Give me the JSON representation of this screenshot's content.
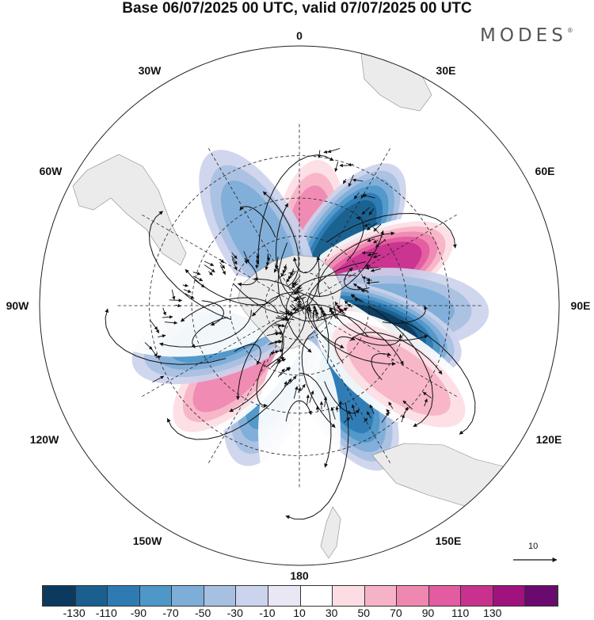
{
  "title": "Base 06/07/2025 00 UTC, valid 07/07/2025 00 UTC",
  "brand": "MODES",
  "brand_mark": "®",
  "longitude_labels": {
    "top": "0",
    "bottom": "180",
    "left": "90W",
    "right": "90E",
    "upper_left_1": "30W",
    "upper_left_2": "60W",
    "lower_left_1": "120W",
    "lower_left_2": "150W",
    "upper_right_1": "30E",
    "upper_right_2": "60E",
    "lower_right_1": "120E",
    "lower_right_2": "150E"
  },
  "reference_vector": {
    "label": "10"
  },
  "colorbar": {
    "colors": [
      "#0b3a5e",
      "#1a5f8e",
      "#2e7bb4",
      "#4f97c9",
      "#7eaed8",
      "#a7c0e2",
      "#ccd3ec",
      "#e9e7f4",
      "#ffffff",
      "#fcdde3",
      "#f6b3c7",
      "#ef88b1",
      "#e35ba0",
      "#c9318e",
      "#a0127e",
      "#6a0a6e"
    ],
    "tick_labels": [
      "-130",
      "-110",
      "-90",
      "-70",
      "-50",
      "-30",
      "-10",
      "10",
      "30",
      "50",
      "70",
      "90",
      "110",
      "130"
    ]
  },
  "anomaly_centers": [
    {
      "lon": 8,
      "lat": -62,
      "value": 80
    },
    {
      "lon": 35,
      "lat": -58,
      "value": -110
    },
    {
      "lon": 65,
      "lat": -55,
      "value": 110
    },
    {
      "lon": 92,
      "lat": -50,
      "value": -60
    },
    {
      "lon": 108,
      "lat": -58,
      "value": -130
    },
    {
      "lon": 132,
      "lat": -55,
      "value": 115
    },
    {
      "lon": 152,
      "lat": -52,
      "value": -90
    },
    {
      "lon": -160,
      "lat": -58,
      "value": -80
    },
    {
      "lon": -135,
      "lat": -52,
      "value": 70
    },
    {
      "lon": -110,
      "lat": -55,
      "value": -70
    },
    {
      "lon": -60,
      "lat": -55,
      "value": 20
    },
    {
      "lon": -30,
      "lat": -55,
      "value": -50
    },
    {
      "lon": 180,
      "lat": -38,
      "value": 25
    },
    {
      "lon": 125,
      "lat": -40,
      "value": 60
    },
    {
      "lon": -95,
      "lat": -45,
      "value": 15
    }
  ]
}
